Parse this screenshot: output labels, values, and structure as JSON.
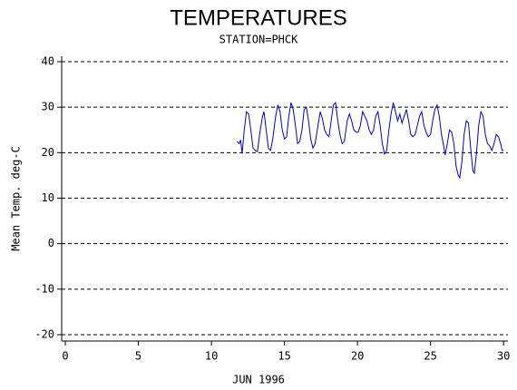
{
  "chart_data": {
    "type": "line",
    "title": "TEMPERATURES",
    "subtitle": "STATION=PHCK",
    "x_label": "JUN 1996",
    "y_label": "Mean Temp. deg-C",
    "xlim": [
      -0.25,
      30.3
    ],
    "xticks": [
      0,
      5,
      10,
      15,
      20,
      25,
      30
    ],
    "ylim": [
      -21.4,
      41.2
    ],
    "yticks": [
      -20,
      -10,
      0,
      10,
      20,
      30,
      40
    ],
    "grid": true,
    "series": [
      {
        "name": "Mean Temp",
        "color": "#0000cc",
        "x": [
          11.75,
          11.9,
          12.0,
          12.1,
          12.25,
          12.4,
          12.55,
          12.7,
          12.85,
          13.0,
          13.15,
          13.3,
          13.5,
          13.6,
          13.75,
          13.9,
          14.05,
          14.2,
          14.4,
          14.55,
          14.7,
          14.85,
          15.0,
          15.15,
          15.3,
          15.45,
          15.6,
          15.75,
          15.9,
          16.05,
          16.2,
          16.35,
          16.5,
          16.65,
          16.8,
          16.95,
          17.1,
          17.3,
          17.45,
          17.6,
          17.75,
          17.9,
          18.05,
          18.2,
          18.35,
          18.5,
          18.65,
          18.8,
          18.95,
          19.1,
          19.3,
          19.45,
          19.6,
          19.75,
          19.9,
          20.05,
          20.2,
          20.35,
          20.5,
          20.65,
          20.8,
          20.95,
          21.1,
          21.25,
          21.4,
          21.55,
          21.7,
          21.85,
          22.0,
          22.15,
          22.3,
          22.45,
          22.6,
          22.75,
          22.9,
          23.05,
          23.2,
          23.35,
          23.5,
          23.65,
          23.8,
          23.95,
          24.1,
          24.25,
          24.4,
          24.55,
          24.7,
          24.85,
          25.0,
          25.15,
          25.3,
          25.45,
          25.6,
          25.75,
          25.9,
          26.0,
          26.15,
          26.3,
          26.45,
          26.6,
          26.75,
          26.9,
          27.0,
          27.15,
          27.3,
          27.45,
          27.6,
          27.75,
          27.9,
          28.0,
          28.15,
          28.3,
          28.45,
          28.6,
          28.75,
          28.9,
          29.05,
          29.2,
          29.35,
          29.5,
          29.65,
          29.8,
          29.9,
          30.0
        ],
        "values": [
          22.5,
          22.0,
          22.8,
          19.8,
          25,
          29,
          28.5,
          25,
          21,
          20.5,
          20.2,
          24,
          28,
          29,
          25,
          21,
          20.5,
          23,
          28,
          30.5,
          29,
          25,
          23,
          23.5,
          28,
          31,
          29.5,
          26,
          22,
          22.5,
          25,
          29.5,
          30,
          27,
          23,
          21,
          22,
          26,
          29,
          27.5,
          25,
          24,
          23.5,
          27,
          30.5,
          31,
          27,
          24,
          22,
          22.5,
          27,
          28.5,
          27,
          25,
          24.5,
          24.5,
          26,
          29,
          28,
          27,
          25,
          24,
          25,
          28,
          29,
          26,
          22,
          19.7,
          20.5,
          25,
          28.5,
          31,
          29,
          27,
          28.5,
          26.5,
          28,
          29.5,
          27,
          24,
          23.5,
          24,
          26,
          28,
          29,
          26,
          24.5,
          23.5,
          24,
          27,
          29.5,
          30.5,
          28,
          24,
          21.5,
          19.5,
          22,
          25,
          24.5,
          22,
          17,
          15,
          14.5,
          18,
          24,
          27,
          26.5,
          21,
          16,
          15.5,
          20,
          26,
          29,
          28,
          24,
          22,
          21.5,
          20.5,
          22,
          24,
          23.5,
          22,
          20.5,
          20.5
        ]
      }
    ]
  }
}
